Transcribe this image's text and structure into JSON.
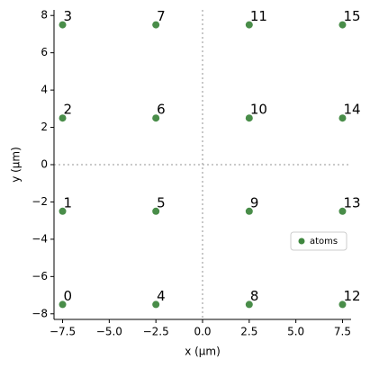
{
  "chart_data": {
    "type": "scatter",
    "xlabel": "x (µm)",
    "ylabel": "y (µm)",
    "x": [
      -7.5,
      -7.5,
      -7.5,
      -7.5,
      -2.5,
      -2.5,
      -2.5,
      -2.5,
      2.5,
      2.5,
      2.5,
      2.5,
      7.5,
      7.5,
      7.5,
      7.5
    ],
    "series": [
      {
        "name": "atoms",
        "color": "#3f873f",
        "values": [
          -7.5,
          -2.5,
          2.5,
          7.5,
          -7.5,
          -2.5,
          2.5,
          7.5,
          -7.5,
          -2.5,
          2.5,
          7.5,
          -7.5,
          -2.5,
          2.5,
          7.5
        ]
      }
    ],
    "point_labels": [
      "0",
      "1",
      "2",
      "3",
      "4",
      "5",
      "6",
      "7",
      "8",
      "9",
      "10",
      "11",
      "12",
      "13",
      "14",
      "15"
    ],
    "xlim": [
      -7.96,
      7.96
    ],
    "ylim": [
      -8.3,
      8.3
    ],
    "xticks": [
      {
        "value": -7.5,
        "label": "−7.5"
      },
      {
        "value": -5,
        "label": "−5.0"
      },
      {
        "value": -2.5,
        "label": "−2.5"
      },
      {
        "value": 0,
        "label": "0.0"
      },
      2.5,
      {
        "value": 5,
        "label": "5.0"
      },
      7.5
    ],
    "yticks": [
      {
        "value": -8,
        "label": "−8"
      },
      {
        "value": -6,
        "label": "−6"
      },
      {
        "value": -4,
        "label": "−4"
      },
      {
        "value": -2,
        "label": "−2"
      },
      0,
      2,
      4,
      6,
      8
    ],
    "hlines": [
      0
    ],
    "vlines": [
      0
    ],
    "legend": "center right"
  }
}
